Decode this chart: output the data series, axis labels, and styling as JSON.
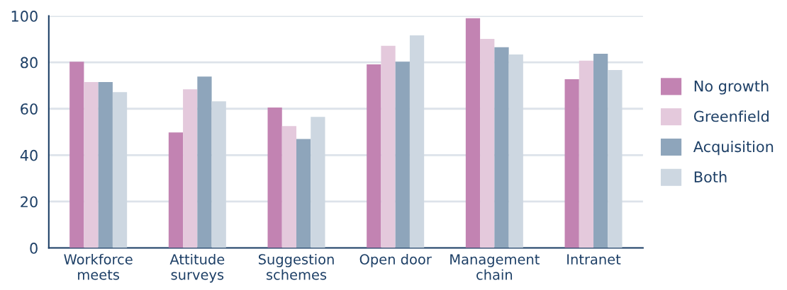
{
  "chart_data": {
    "type": "bar",
    "categories": [
      "Workforce\nmeets",
      "Attitude\nsurveys",
      "Suggestion\nschemes",
      "Open door",
      "Management\nchain",
      "Intranet"
    ],
    "series": [
      {
        "name": "No growth",
        "color": "#c283b2",
        "values": [
          80.3,
          49.8,
          60.5,
          79.1,
          99.0,
          72.7
        ]
      },
      {
        "name": "Greenfield",
        "color": "#e4c9dc",
        "values": [
          71.5,
          68.4,
          52.5,
          87.1,
          90.1,
          80.7
        ]
      },
      {
        "name": "Acquisition",
        "color": "#8ea5bb",
        "values": [
          71.5,
          73.9,
          47.0,
          80.3,
          86.5,
          83.7
        ]
      },
      {
        "name": "Both",
        "color": "#cdd7e1",
        "values": [
          67.2,
          63.2,
          56.5,
          91.6,
          83.4,
          76.7
        ]
      }
    ],
    "ylim": [
      0,
      100
    ],
    "yticks": [
      0,
      20,
      40,
      60,
      80,
      100
    ],
    "grid": "y",
    "legend": "right"
  }
}
